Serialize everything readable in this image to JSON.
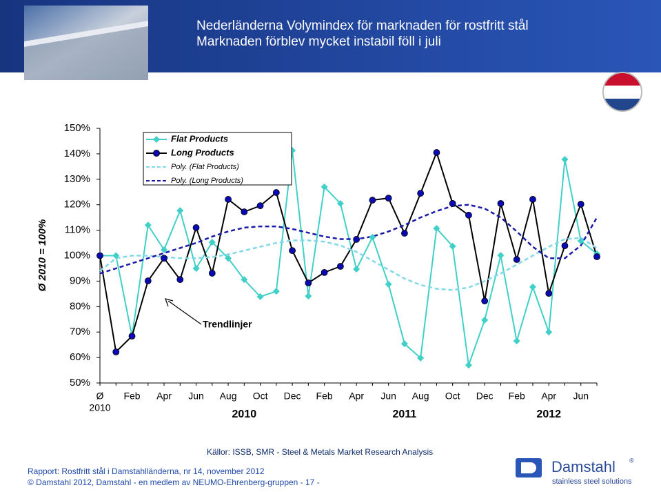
{
  "header": {
    "title": "Nederländerna  Volymindex för marknaden för rostfritt stål",
    "subtitle": "Marknaden förblev mycket instabil  föll i juli"
  },
  "chart_data": {
    "type": "line",
    "y_axis_label": "Ø  2010 = 100%",
    "categories": [
      "Ø",
      null,
      "Feb",
      null,
      "Apr",
      null,
      "Jun",
      null,
      "Aug",
      null,
      "Oct",
      null,
      "Dec",
      null,
      "Feb",
      null,
      "Apr",
      null,
      "Jun",
      null,
      "Aug",
      null,
      "Oct",
      null,
      "Dec",
      null,
      "Feb",
      null,
      "Apr",
      null,
      "Jun",
      null
    ],
    "base_year": "2010",
    "year_labels": [
      "2010",
      "2011",
      "2012"
    ],
    "series": [
      {
        "name": "Flat Products",
        "color": "#40d0c8",
        "marker": "diamond",
        "values": [
          100,
          100,
          68.4,
          112,
          102.3,
          117.7,
          95,
          105.3,
          99,
          90.6,
          83.9,
          86,
          141.3,
          84.1,
          127,
          120.5,
          94.7,
          107.2,
          88.8,
          65.4,
          59.8,
          110.7,
          103.7,
          57,
          74.7,
          100.1,
          66.5,
          87.7,
          70,
          137.8,
          105.8,
          100.7
        ]
      },
      {
        "name": "Long Products",
        "color": "#000000",
        "marker_color": "#0a0ab4",
        "marker": "circle",
        "values": [
          100,
          62.2,
          68.4,
          90.1,
          99,
          90.6,
          111,
          93.1,
          122.1,
          117.2,
          119.6,
          124.8,
          102,
          89.3,
          93.4,
          95.8,
          106.4,
          121.8,
          122.6,
          108.8,
          124.5,
          140.5,
          120.5,
          115.9,
          82.2,
          120.5,
          98.5,
          122.1,
          85.2,
          103.9,
          120.2,
          99.6
        ]
      },
      {
        "name": "Poly. (Flat Products)",
        "color": "#80d8e8",
        "dash": true,
        "values": [
          94,
          99,
          100,
          100,
          99.5,
          99,
          99,
          99.5,
          100.5,
          102,
          103.5,
          105,
          106,
          106,
          105.5,
          104,
          101.5,
          98,
          94.5,
          91,
          88.5,
          87,
          86.5,
          87.5,
          90,
          93,
          96.5,
          100,
          103.5,
          106.5,
          107,
          103
        ]
      },
      {
        "name": "Poly. (Long Products)",
        "color": "#1a1aaa",
        "dash": true,
        "values": [
          93,
          95,
          97,
          99,
          101,
          103,
          105,
          107.5,
          109.5,
          111,
          111.5,
          111.5,
          110.5,
          109,
          107.5,
          106.5,
          106.5,
          107.5,
          109.5,
          112,
          115,
          117.5,
          119.5,
          120,
          118.5,
          115,
          109.5,
          103.5,
          99,
          99,
          104,
          115
        ]
      }
    ],
    "ylim": [
      50,
      150
    ],
    "yticks": [
      {
        "value": 50,
        "label": "50%"
      },
      {
        "value": 60,
        "label": "60%"
      },
      {
        "value": 70,
        "label": "70%"
      },
      {
        "value": 80,
        "label": "80%"
      },
      {
        "value": 90,
        "label": "90%"
      },
      {
        "value": 100,
        "label": "100%"
      },
      {
        "value": 110,
        "label": "110%"
      },
      {
        "value": 120,
        "label": "120%"
      },
      {
        "value": 130,
        "label": "130%"
      },
      {
        "value": 140,
        "label": "140%"
      },
      {
        "value": 150,
        "label": "150%"
      }
    ],
    "annotation": "Trendlinjer",
    "grid": false
  },
  "source": "Källor: ISSB, SMR - Steel & Metals Market Research Analysis",
  "footer": {
    "report": "Rapport: Rostfritt stål i Damstahlländerna, nr 14, november 2012",
    "copyright": "© Damstahl 2012, Damstahl - en medlem av NEUMO-Ehrenberg-gruppen - 17 -"
  },
  "logo": {
    "name": "Damstahl",
    "registered": "®",
    "tagline": "stainless steel solutions"
  }
}
